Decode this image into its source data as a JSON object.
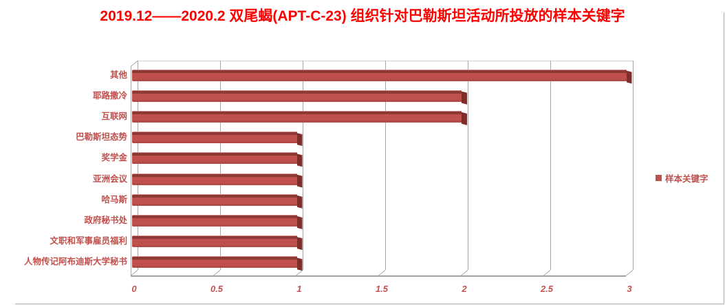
{
  "title": {
    "text": "2019.12——2020.2 双尾蝎(APT-C-23) 组织针对巴勒斯坦活动所投放的样本关键字",
    "color": "#FE0000"
  },
  "legend": {
    "label": "样本关键字",
    "position": "right",
    "swatch_color": "#C0504D"
  },
  "colors": {
    "bar_main": "#C0504D",
    "bar_main_dark": "#B34A47",
    "bar_top_bevel": "#8E3936",
    "bar_highlight": "#D9918E",
    "bar_end_cap": "#7D2E2B",
    "label_red": "#C0504D",
    "title_red": "#FE0000",
    "gridline_gray": "#A6A6A6"
  },
  "chart_data": {
    "type": "bar",
    "orientation": "horizontal",
    "title": "2019.12——2020.2 双尾蝎(APT-C-23) 组织针对巴勒斯坦活动所投放的样本关键字",
    "series_name": "样本关键字",
    "categories": [
      "其他",
      "耶路撒冷",
      "互联网",
      "巴勒斯坦态势",
      "奖学金",
      "亚洲会议",
      "哈马斯",
      "政府秘书处",
      "文职和军事雇员福利",
      "人物传记阿布迪斯大学秘书"
    ],
    "values": [
      3,
      2,
      2,
      1,
      1,
      1,
      1,
      1,
      1,
      1
    ],
    "xlim": [
      0,
      3
    ],
    "x_ticks": [
      "0",
      "0.5",
      "1",
      "1.5",
      "2",
      "2.5",
      "3"
    ],
    "xlabel": "",
    "ylabel": "",
    "grid": true,
    "style_3d": true,
    "legend_position": "right",
    "bar_color": "#C0504D"
  }
}
